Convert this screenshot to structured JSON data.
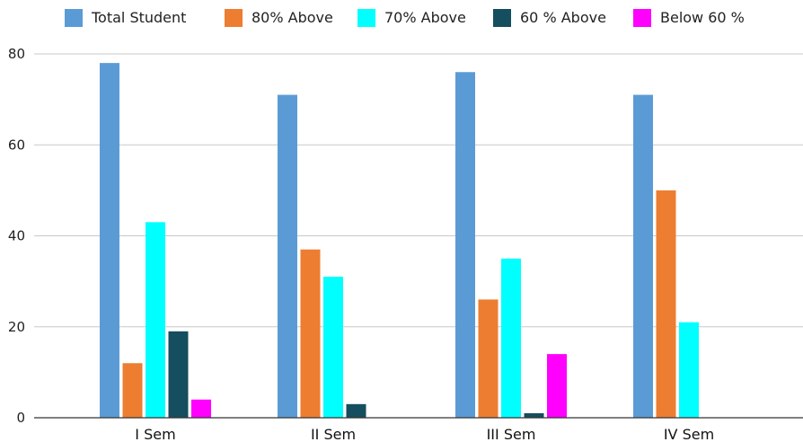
{
  "chart_data": {
    "type": "bar",
    "categories": [
      "I Sem",
      "II Sem",
      "III Sem",
      "IV Sem"
    ],
    "series": [
      {
        "name": "Total Student",
        "color": "#5b9bd5",
        "values": [
          78,
          71,
          76,
          71
        ]
      },
      {
        "name": "80% Above",
        "color": "#ed7d31",
        "values": [
          12,
          37,
          26,
          50
        ]
      },
      {
        "name": "70%  Above",
        "color": "#00ffff",
        "values": [
          43,
          31,
          35,
          21
        ]
      },
      {
        "name": "60 % Above",
        "color": "#154e5e",
        "values": [
          19,
          3,
          1,
          0
        ]
      },
      {
        "name": "Below 60 %",
        "color": "#ff00ff",
        "values": [
          4,
          0,
          14,
          0
        ]
      }
    ],
    "ylim": [
      0,
      80
    ],
    "yticks": [
      "0",
      "20",
      "40",
      "60",
      "80"
    ],
    "grid": true,
    "legend_position": "top"
  }
}
